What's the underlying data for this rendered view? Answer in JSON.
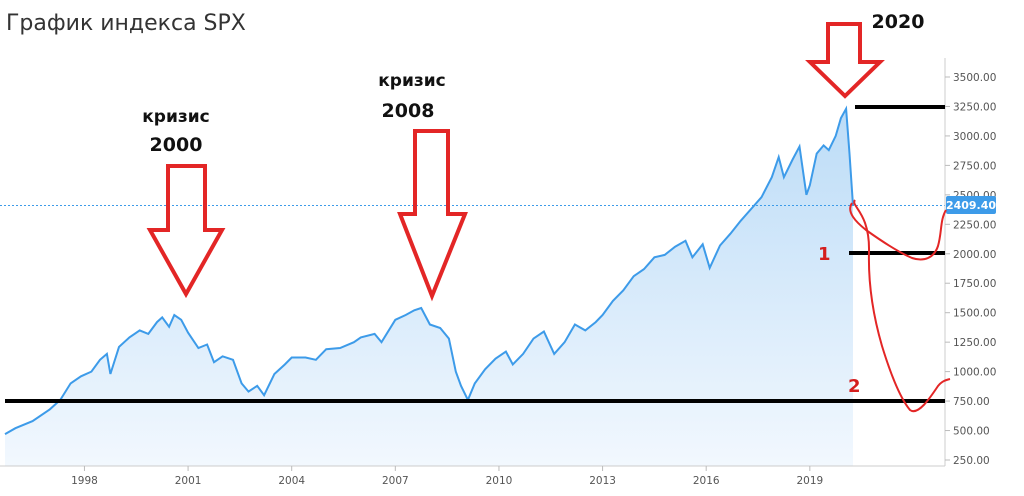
{
  "title": "График индекса SPX",
  "colors": {
    "line": "#3d9be9",
    "area_top": "#bcdcf7",
    "area_bottom": "#eef6fd",
    "annotation_red": "#e32626",
    "support_line": "#000000",
    "badge": "#3d9be9"
  },
  "chart_data": {
    "type": "area",
    "x_start_year": 1995.7,
    "x_end_year": 2020.25,
    "ylim": [
      230,
      3600
    ],
    "y_ticks": [
      {
        "value": 250,
        "label": "250.00"
      },
      {
        "value": 500,
        "label": "500.00"
      },
      {
        "value": 750,
        "label": "750.00"
      },
      {
        "value": 1000,
        "label": "1000.00"
      },
      {
        "value": 1250,
        "label": "1250.00"
      },
      {
        "value": 1500,
        "label": "1500.00"
      },
      {
        "value": 1750,
        "label": "1750.00"
      },
      {
        "value": 2000,
        "label": "2000.00"
      },
      {
        "value": 2250,
        "label": "2250.00"
      },
      {
        "value": 2500,
        "label": "2500.00"
      },
      {
        "value": 2750,
        "label": "2750.00"
      },
      {
        "value": 3000,
        "label": "3000.00"
      },
      {
        "value": 3250,
        "label": "3250.00"
      },
      {
        "value": 3500,
        "label": "3500.00"
      }
    ],
    "x_ticks": [
      {
        "value": 1998,
        "label": "1998"
      },
      {
        "value": 2001,
        "label": "2001"
      },
      {
        "value": 2004,
        "label": "2004"
      },
      {
        "value": 2007,
        "label": "2007"
      },
      {
        "value": 2010,
        "label": "2010"
      },
      {
        "value": 2013,
        "label": "2013"
      },
      {
        "value": 2016,
        "label": "2016"
      },
      {
        "value": 2019,
        "label": "2019"
      }
    ],
    "last_price": {
      "value": 2409.4,
      "label": "2409.40"
    },
    "series": [
      {
        "points": [
          [
            1995.7,
            470
          ],
          [
            1996.0,
            520
          ],
          [
            1996.5,
            580
          ],
          [
            1997.0,
            680
          ],
          [
            1997.3,
            760
          ],
          [
            1997.6,
            900
          ],
          [
            1997.9,
            960
          ],
          [
            1998.2,
            1000
          ],
          [
            1998.45,
            1100
          ],
          [
            1998.65,
            1150
          ],
          [
            1998.75,
            980
          ],
          [
            1999.0,
            1210
          ],
          [
            1999.3,
            1290
          ],
          [
            1999.6,
            1350
          ],
          [
            1999.85,
            1320
          ],
          [
            2000.1,
            1420
          ],
          [
            2000.25,
            1460
          ],
          [
            2000.45,
            1380
          ],
          [
            2000.6,
            1480
          ],
          [
            2000.8,
            1440
          ],
          [
            2001.0,
            1330
          ],
          [
            2001.3,
            1200
          ],
          [
            2001.55,
            1230
          ],
          [
            2001.75,
            1080
          ],
          [
            2002.0,
            1130
          ],
          [
            2002.3,
            1100
          ],
          [
            2002.55,
            900
          ],
          [
            2002.75,
            830
          ],
          [
            2003.0,
            880
          ],
          [
            2003.2,
            800
          ],
          [
            2003.5,
            980
          ],
          [
            2003.8,
            1060
          ],
          [
            2004.0,
            1120
          ],
          [
            2004.4,
            1120
          ],
          [
            2004.7,
            1100
          ],
          [
            2005.0,
            1190
          ],
          [
            2005.4,
            1200
          ],
          [
            2005.8,
            1250
          ],
          [
            2006.0,
            1290
          ],
          [
            2006.4,
            1320
          ],
          [
            2006.6,
            1250
          ],
          [
            2007.0,
            1440
          ],
          [
            2007.3,
            1480
          ],
          [
            2007.55,
            1520
          ],
          [
            2007.75,
            1540
          ],
          [
            2008.0,
            1400
          ],
          [
            2008.3,
            1370
          ],
          [
            2008.55,
            1280
          ],
          [
            2008.75,
            1000
          ],
          [
            2008.9,
            880
          ],
          [
            2009.1,
            760
          ],
          [
            2009.3,
            900
          ],
          [
            2009.6,
            1020
          ],
          [
            2009.9,
            1110
          ],
          [
            2010.2,
            1170
          ],
          [
            2010.4,
            1060
          ],
          [
            2010.7,
            1150
          ],
          [
            2011.0,
            1280
          ],
          [
            2011.3,
            1340
          ],
          [
            2011.6,
            1150
          ],
          [
            2011.9,
            1250
          ],
          [
            2012.2,
            1400
          ],
          [
            2012.5,
            1350
          ],
          [
            2012.8,
            1420
          ],
          [
            2013.0,
            1480
          ],
          [
            2013.3,
            1600
          ],
          [
            2013.6,
            1690
          ],
          [
            2013.9,
            1810
          ],
          [
            2014.2,
            1870
          ],
          [
            2014.5,
            1970
          ],
          [
            2014.8,
            1990
          ],
          [
            2015.1,
            2060
          ],
          [
            2015.4,
            2110
          ],
          [
            2015.6,
            1970
          ],
          [
            2015.9,
            2080
          ],
          [
            2016.1,
            1880
          ],
          [
            2016.4,
            2070
          ],
          [
            2016.7,
            2170
          ],
          [
            2017.0,
            2280
          ],
          [
            2017.3,
            2380
          ],
          [
            2017.6,
            2480
          ],
          [
            2017.9,
            2650
          ],
          [
            2018.1,
            2820
          ],
          [
            2018.25,
            2650
          ],
          [
            2018.5,
            2800
          ],
          [
            2018.7,
            2910
          ],
          [
            2018.9,
            2500
          ],
          [
            2019.0,
            2580
          ],
          [
            2019.2,
            2850
          ],
          [
            2019.4,
            2920
          ],
          [
            2019.55,
            2880
          ],
          [
            2019.75,
            3000
          ],
          [
            2019.9,
            3150
          ],
          [
            2020.05,
            3230
          ],
          [
            2020.15,
            2850
          ],
          [
            2020.25,
            2409
          ]
        ]
      }
    ]
  },
  "annotations": {
    "crisis_2000": {
      "label": "кризис",
      "year": "2000"
    },
    "crisis_2008": {
      "label": "кризис",
      "year": "2008"
    },
    "crisis_2020": {
      "year": "2020"
    },
    "scenario_1": "1",
    "scenario_2": "2"
  }
}
